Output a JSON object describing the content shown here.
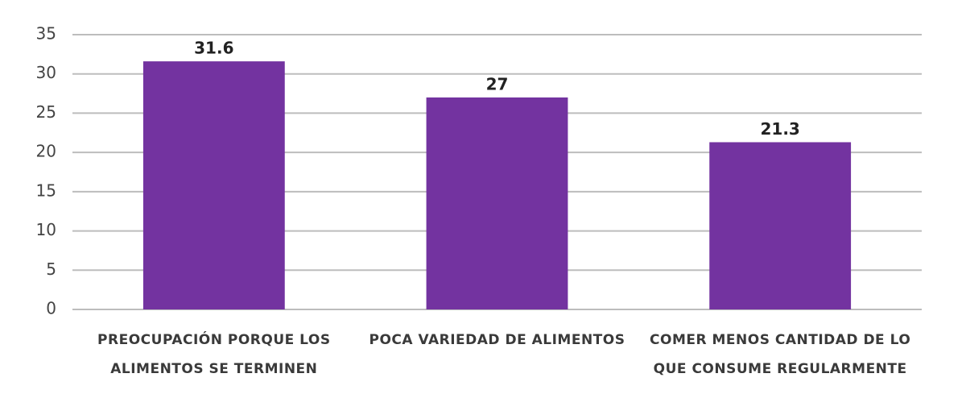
{
  "chart_data": {
    "type": "bar",
    "categories": [
      "PREOCUPACIÓN PORQUE LOS ALIMENTOS SE TERMINEN",
      "POCA VARIEDAD DE ALIMENTOS",
      "COMER MENOS CANTIDAD DE LO QUE CONSUME REGULARMENTE"
    ],
    "values": [
      31.6,
      27,
      21.3
    ],
    "color": "#7333a0",
    "ylim": [
      0,
      35
    ],
    "yticks": [
      0,
      5,
      10,
      15,
      20,
      25,
      30,
      35
    ],
    "grid": true
  }
}
